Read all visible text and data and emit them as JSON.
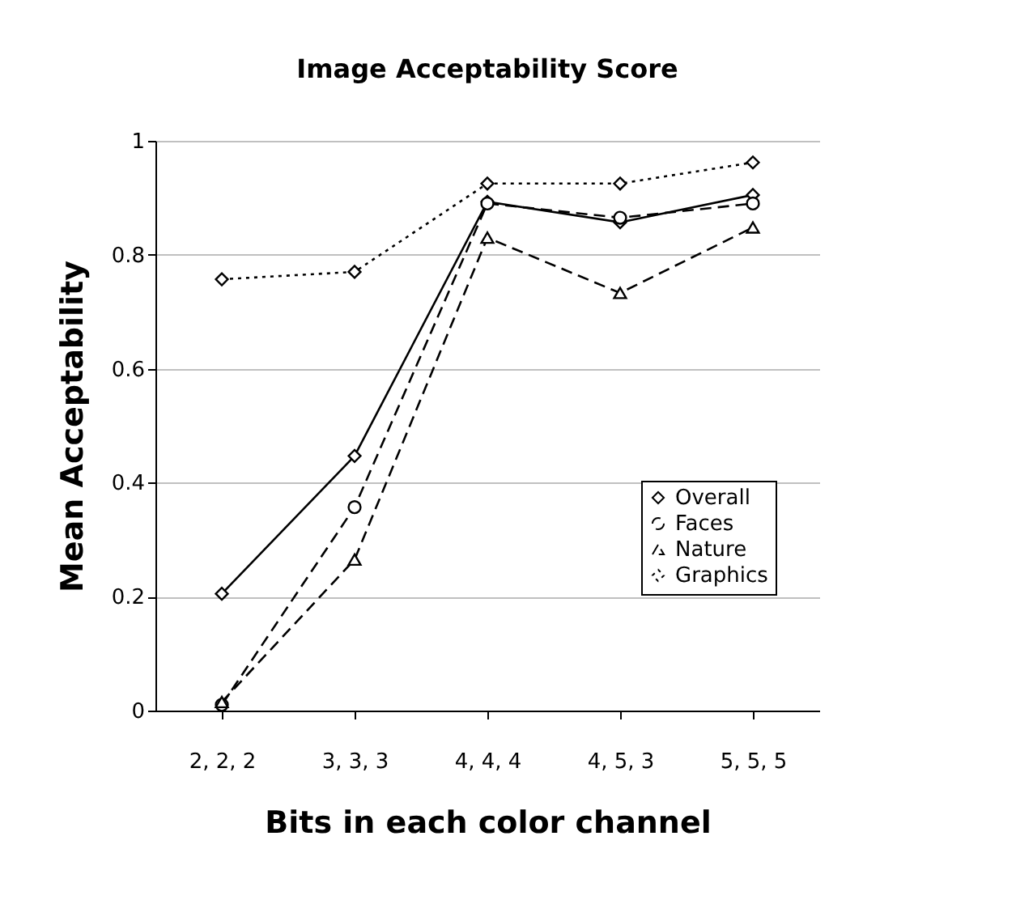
{
  "chart_data": {
    "type": "line",
    "title": "Image Acceptability Score",
    "xlabel": "Bits in each color channel",
    "ylabel": "Mean Acceptability",
    "categories": [
      "2, 2, 2",
      "3, 3, 3",
      "4, 4, 4",
      "4, 5, 3",
      "5, 5, 5"
    ],
    "series": [
      {
        "name": "Overall",
        "color": "#000000",
        "marker": "diamond",
        "line_style": "solid",
        "values": [
          0.205,
          0.447,
          0.893,
          0.857,
          0.905
        ]
      },
      {
        "name": "Faces",
        "color": "#000000",
        "marker": "circle",
        "line_style": "dashed",
        "values": [
          0.01,
          0.357,
          0.89,
          0.865,
          0.89
        ]
      },
      {
        "name": "Nature",
        "color": "#000000",
        "marker": "triangle",
        "line_style": "dashed",
        "values": [
          0.015,
          0.265,
          0.83,
          0.733,
          0.848
        ]
      },
      {
        "name": "Graphics",
        "color": "#000000",
        "marker": "diamond",
        "line_style": "dotted",
        "values": [
          0.757,
          0.77,
          0.925,
          0.925,
          0.962
        ]
      }
    ],
    "ylim": [
      0,
      1
    ],
    "yticks": [
      0,
      0.2,
      0.4,
      0.6,
      0.8,
      1
    ],
    "grid": "y",
    "legend": "right"
  }
}
